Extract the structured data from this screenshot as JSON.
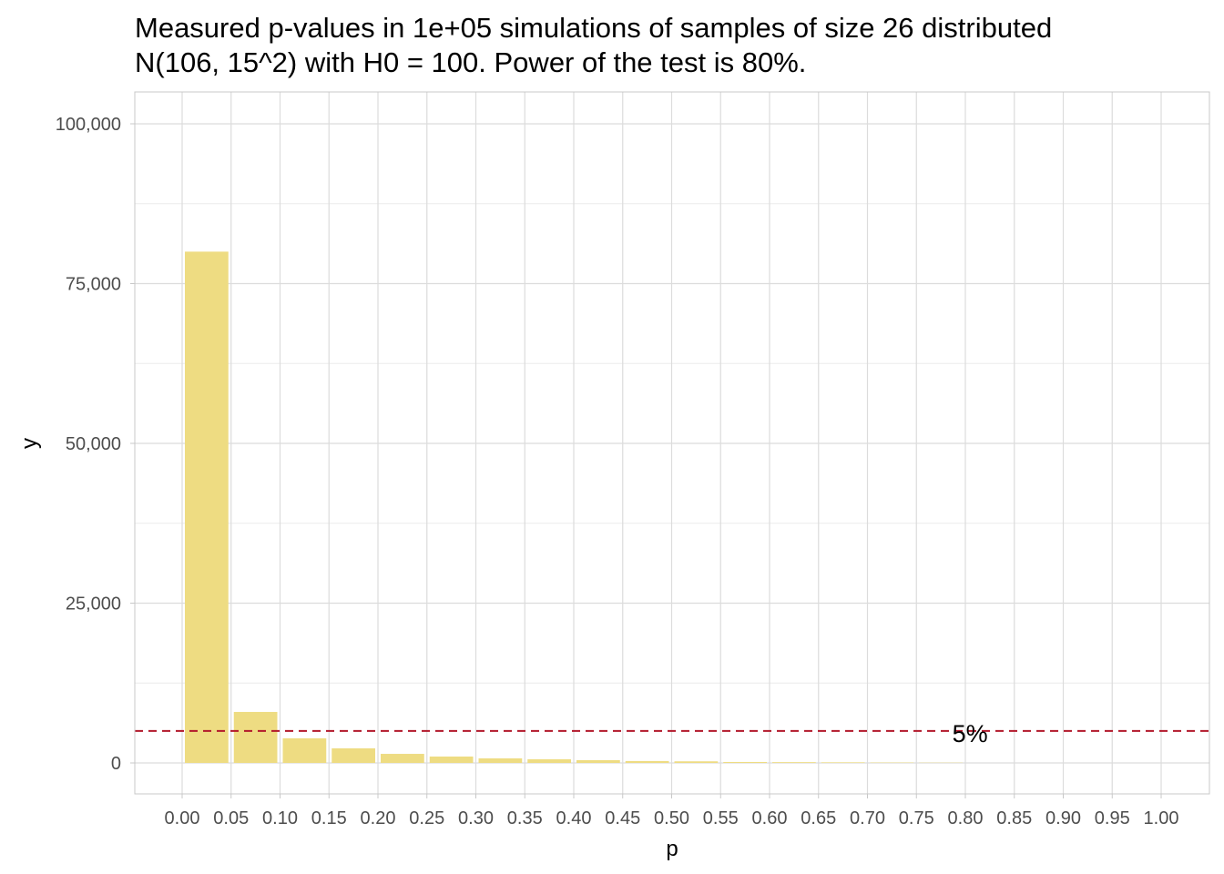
{
  "chart_data": {
    "type": "bar",
    "title_lines": [
      "Measured p-values in 1e+05 simulations of samples of size 26 distributed",
      "N(106, 15^2) with H0 = 100. Power of the test is 80%."
    ],
    "xlabel": "p",
    "ylabel": "y",
    "xlim": [
      0,
      1
    ],
    "ylim": [
      0,
      100000
    ],
    "x_ticks": [
      "0.00",
      "0.05",
      "0.10",
      "0.15",
      "0.20",
      "0.25",
      "0.30",
      "0.35",
      "0.40",
      "0.45",
      "0.50",
      "0.55",
      "0.60",
      "0.65",
      "0.70",
      "0.75",
      "0.80",
      "0.85",
      "0.90",
      "0.95",
      "1.00"
    ],
    "y_ticks": [
      {
        "value": 0,
        "label": "0"
      },
      {
        "value": 25000,
        "label": "25,000"
      },
      {
        "value": 50000,
        "label": "50,000"
      },
      {
        "value": 75000,
        "label": "75,000"
      },
      {
        "value": 100000,
        "label": "100,000"
      }
    ],
    "bin_width": 0.05,
    "bin_starts": [
      0,
      0.05,
      0.1,
      0.15,
      0.2,
      0.25,
      0.3,
      0.35,
      0.4,
      0.45,
      0.5,
      0.55,
      0.6,
      0.65,
      0.7,
      0.75
    ],
    "values": [
      80000,
      7980,
      3850,
      2280,
      1420,
      1000,
      710,
      570,
      430,
      300,
      250,
      150,
      120,
      90,
      60,
      40
    ],
    "bar_color": "#EEDC82",
    "reference_line": {
      "value": 5000,
      "label": "5%",
      "color": "#B2182B",
      "label_x": 0.775
    },
    "grid": true
  }
}
